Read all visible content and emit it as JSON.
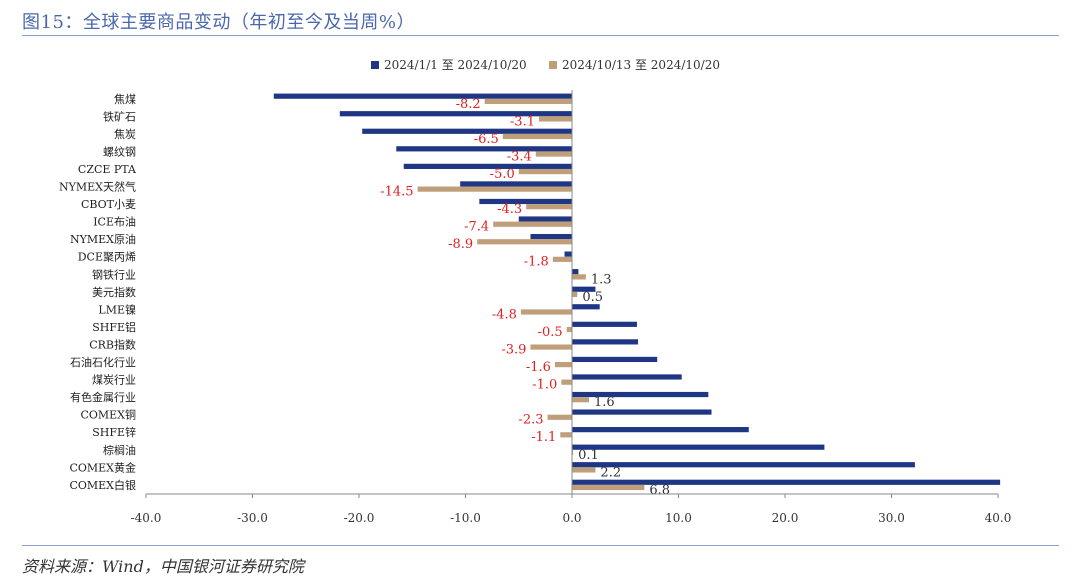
{
  "title": "图15：全球主要商品变动（年初至今及当周%）",
  "source": "资料来源：Wind，中国银河证券研究院",
  "colors": {
    "ytd": "#1f3685",
    "week": "#bf9f79",
    "neg_label": "#e02020",
    "pos_label": "#333333"
  },
  "chart_data": {
    "type": "bar",
    "orientation": "horizontal",
    "title": "",
    "xlabel": "",
    "ylabel": "",
    "xlim": [
      -40,
      40
    ],
    "xticks": [
      "-40.0",
      "-30.0",
      "-20.0",
      "-10.0",
      "0.0",
      "10.0",
      "20.0",
      "30.0",
      "40.0"
    ],
    "xtick_values": [
      -40,
      -30,
      -20,
      -10,
      0,
      10,
      20,
      30,
      40
    ],
    "legend_position": "top-center",
    "grid": false,
    "categories": [
      "焦煤",
      "铁矿石",
      "焦炭",
      "螺纹钢",
      "CZCE PTA",
      "NYMEX天然气",
      "CBOT小麦",
      "ICE布油",
      "NYMEX原油",
      "DCE聚丙烯",
      "钢铁行业",
      "美元指数",
      "LME镍",
      "SHFE铝",
      "CRB指数",
      "石油石化行业",
      "煤炭行业",
      "有色金属行业",
      "COMEX铜",
      "SHFE锌",
      "棕榈油",
      "COMEX黄金",
      "COMEX白银"
    ],
    "series": [
      {
        "name": "2024/1/1 至 2024/10/20",
        "values": [
          -28.0,
          -21.8,
          -19.7,
          -16.5,
          -15.8,
          -10.5,
          -8.7,
          -5.0,
          -3.9,
          -0.7,
          0.6,
          2.2,
          2.6,
          6.1,
          6.2,
          8.0,
          10.3,
          12.8,
          13.1,
          16.6,
          23.7,
          32.2,
          40.2
        ]
      },
      {
        "name": "2024/10/13 至 2024/10/20",
        "values": [
          -8.2,
          -3.1,
          -6.5,
          -3.4,
          -5.0,
          -14.5,
          -4.3,
          -7.4,
          -8.9,
          -1.8,
          1.3,
          0.5,
          -4.8,
          -0.5,
          -3.9,
          -1.6,
          -1.0,
          1.6,
          -2.3,
          -1.1,
          0.1,
          2.2,
          6.8
        ]
      }
    ],
    "data_labels": [
      "-8.2",
      "-3.1",
      "-6.5",
      "-3.4",
      "-5.0",
      "-14.5",
      "-4.3",
      "-7.4",
      "-8.9",
      "-1.8",
      "1.3",
      "0.5",
      "-4.8",
      "-0.5",
      "-3.9",
      "-1.6",
      "-1.0",
      "1.6",
      "-2.3",
      "-1.1",
      "0.1",
      "2.2",
      "6.8"
    ]
  }
}
